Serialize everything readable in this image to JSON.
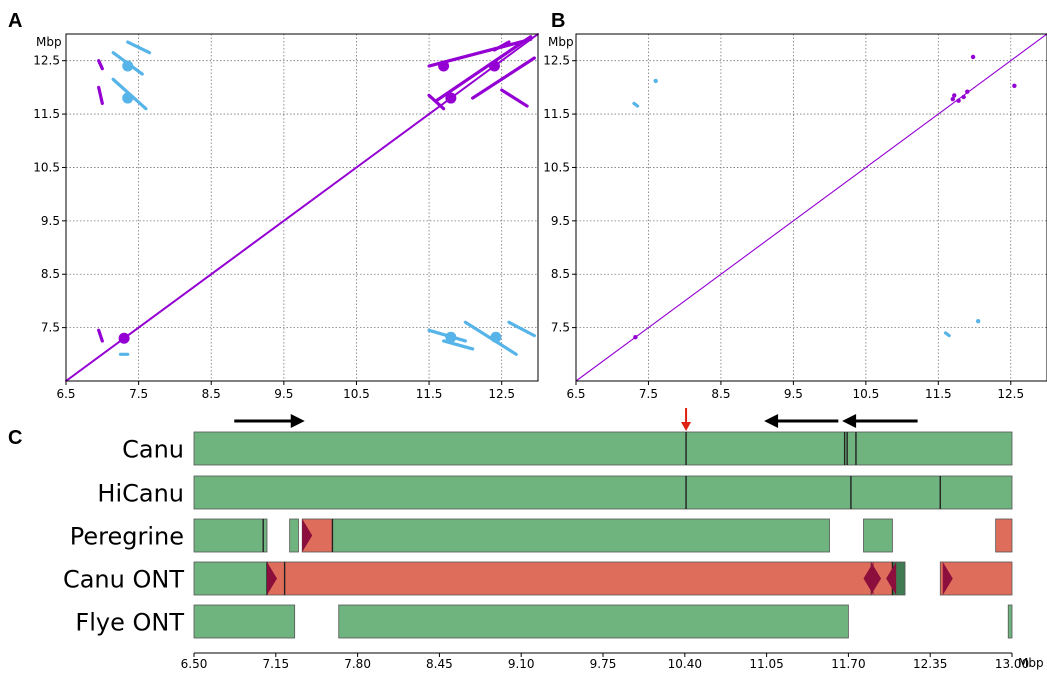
{
  "colors": {
    "purple": "#9400D3",
    "blue": "#56B4E9",
    "green": "#6FB37F",
    "red": "#DE6E5B",
    "dark_red": "#8B0E3C",
    "dark_green": "#3E7A52",
    "arrow_red": "#E02010",
    "grid": "#777777"
  },
  "panels": {
    "A": {
      "letter": "A",
      "unit": "Mbp"
    },
    "B": {
      "letter": "B",
      "unit": "Mbp"
    },
    "C": {
      "letter": "C",
      "unit": "Mbp"
    }
  },
  "chart_data": [
    {
      "panel": "A",
      "type": "scatter",
      "xlim": [
        6.5,
        13.0
      ],
      "ylim": [
        6.5,
        13.0
      ],
      "xticks": [
        "6.5",
        "7.5",
        "8.5",
        "9.5",
        "10.5",
        "11.5",
        "12.5"
      ],
      "yticks": [
        "7.5",
        "8.5",
        "9.5",
        "10.5",
        "11.5",
        "12.5"
      ],
      "ylabel": "Mbp",
      "grid": true,
      "segments": [
        {
          "color": "purple",
          "x": [
            6.5,
            13.0
          ],
          "y": [
            6.5,
            13.0
          ]
        },
        {
          "color": "purple",
          "x": [
            11.5,
            12.9
          ],
          "y": [
            12.4,
            12.9
          ]
        },
        {
          "color": "purple",
          "x": [
            11.6,
            12.9
          ],
          "y": [
            11.75,
            12.95
          ]
        },
        {
          "color": "purple",
          "x": [
            12.1,
            12.95
          ],
          "y": [
            11.8,
            12.55
          ]
        },
        {
          "color": "purple",
          "x": [
            12.5,
            12.85
          ],
          "y": [
            11.95,
            11.65
          ]
        },
        {
          "color": "purple",
          "x": [
            12.4,
            12.6
          ],
          "y": [
            12.7,
            12.85
          ]
        },
        {
          "color": "purple",
          "x": [
            11.5,
            11.7
          ],
          "y": [
            11.85,
            11.6
          ]
        },
        {
          "color": "purple",
          "x": [
            6.95,
            7.0
          ],
          "y": [
            12.5,
            12.35
          ]
        },
        {
          "color": "purple",
          "x": [
            6.95,
            7.0
          ],
          "y": [
            12.0,
            11.7
          ]
        },
        {
          "color": "purple",
          "x": [
            6.95,
            7.0
          ],
          "y": [
            7.45,
            7.25
          ]
        },
        {
          "color": "blue",
          "x": [
            7.15,
            7.55
          ],
          "y": [
            12.65,
            12.25
          ]
        },
        {
          "color": "blue",
          "x": [
            7.35,
            7.65
          ],
          "y": [
            12.85,
            12.65
          ]
        },
        {
          "color": "blue",
          "x": [
            7.15,
            7.6
          ],
          "y": [
            12.15,
            11.6
          ]
        },
        {
          "color": "blue",
          "x": [
            7.25,
            7.35
          ],
          "y": [
            7.0,
            7.0
          ]
        },
        {
          "color": "blue",
          "x": [
            11.5,
            12.0
          ],
          "y": [
            7.45,
            7.25
          ]
        },
        {
          "color": "blue",
          "x": [
            11.7,
            12.1
          ],
          "y": [
            7.25,
            7.1
          ]
        },
        {
          "color": "blue",
          "x": [
            12.0,
            12.7
          ],
          "y": [
            7.6,
            7.0
          ]
        },
        {
          "color": "blue",
          "x": [
            12.6,
            12.95
          ],
          "y": [
            7.6,
            7.35
          ]
        }
      ],
      "blobs": [
        {
          "color": "purple",
          "x": 7.3,
          "y": 7.3
        },
        {
          "color": "purple",
          "x": 11.8,
          "y": 11.8
        },
        {
          "color": "purple",
          "x": 11.7,
          "y": 12.4
        },
        {
          "color": "purple",
          "x": 12.4,
          "y": 12.4
        },
        {
          "color": "blue",
          "x": 7.35,
          "y": 12.4
        },
        {
          "color": "blue",
          "x": 7.35,
          "y": 11.8
        },
        {
          "color": "blue",
          "x": 11.8,
          "y": 7.32
        },
        {
          "color": "blue",
          "x": 12.42,
          "y": 7.32
        }
      ]
    },
    {
      "panel": "B",
      "type": "scatter",
      "xlim": [
        6.5,
        13.0
      ],
      "ylim": [
        6.5,
        13.0
      ],
      "xticks": [
        "6.5",
        "7.5",
        "8.5",
        "9.5",
        "10.5",
        "11.5",
        "12.5"
      ],
      "yticks": [
        "7.5",
        "8.5",
        "9.5",
        "10.5",
        "11.5",
        "12.5"
      ],
      "ylabel": "Mbp",
      "grid": true,
      "segments": [
        {
          "color": "purple",
          "x": [
            6.5,
            13.0
          ],
          "y": [
            6.5,
            13.0
          ]
        },
        {
          "color": "blue",
          "x": [
            7.3,
            7.35
          ],
          "y": [
            11.7,
            11.65
          ]
        },
        {
          "color": "blue",
          "x": [
            11.6,
            11.65
          ],
          "y": [
            7.4,
            7.35
          ]
        }
      ],
      "blobs": [
        {
          "color": "purple",
          "x": 7.32,
          "y": 7.32
        },
        {
          "color": "purple",
          "x": 11.72,
          "y": 11.85
        },
        {
          "color": "purple",
          "x": 11.78,
          "y": 11.75
        },
        {
          "color": "purple",
          "x": 11.85,
          "y": 11.82
        },
        {
          "color": "purple",
          "x": 11.7,
          "y": 11.78
        },
        {
          "color": "purple",
          "x": 11.9,
          "y": 11.92
        },
        {
          "color": "purple",
          "x": 11.98,
          "y": 12.57
        },
        {
          "color": "purple",
          "x": 12.55,
          "y": 12.03
        },
        {
          "color": "blue",
          "x": 7.6,
          "y": 12.12
        },
        {
          "color": "blue",
          "x": 12.05,
          "y": 7.62
        }
      ]
    },
    {
      "panel": "C",
      "type": "bar",
      "orientation": "horizontal",
      "xlim": [
        6.5,
        13.0
      ],
      "xticks": [
        "6.50",
        "7.15",
        "7.80",
        "8.45",
        "9.10",
        "9.75",
        "10.40",
        "11.05",
        "11.70",
        "12.35",
        "13.00"
      ],
      "xlabel": "Mbp",
      "tracks": [
        {
          "name": "Canu",
          "blocks": [
            {
              "start": 6.5,
              "end": 13.0,
              "color": "green"
            }
          ],
          "lines": [
            10.41,
            11.67,
            11.69,
            11.76
          ]
        },
        {
          "name": "HiCanu",
          "blocks": [
            {
              "start": 6.5,
              "end": 13.0,
              "color": "green"
            }
          ],
          "lines": [
            10.41,
            11.72,
            12.43
          ]
        },
        {
          "name": "Peregrine",
          "blocks": [
            {
              "start": 6.5,
              "end": 7.08,
              "color": "green"
            },
            {
              "start": 7.26,
              "end": 7.33,
              "color": "green"
            },
            {
              "start": 7.36,
              "end": 7.6,
              "color": "red"
            },
            {
              "start": 7.6,
              "end": 11.55,
              "color": "green"
            },
            {
              "start": 11.82,
              "end": 12.05,
              "color": "green"
            },
            {
              "start": 12.87,
              "end": 13.0,
              "color": "red"
            }
          ],
          "lines": [
            7.05,
            7.6
          ],
          "markers": [
            {
              "pos": 7.36,
              "dir": "right"
            }
          ]
        },
        {
          "name": "Canu ONT",
          "blocks": [
            {
              "start": 6.5,
              "end": 7.08,
              "color": "green"
            },
            {
              "start": 7.08,
              "end": 7.22,
              "color": "red"
            },
            {
              "start": 7.22,
              "end": 11.88,
              "color": "red"
            },
            {
              "start": 11.88,
              "end": 12.05,
              "color": "red"
            },
            {
              "start": 12.05,
              "end": 12.15,
              "color": "dark_green"
            },
            {
              "start": 12.43,
              "end": 13.0,
              "color": "red"
            }
          ],
          "lines": [
            7.08,
            7.22,
            12.05
          ],
          "markers": [
            {
              "pos": 7.08,
              "dir": "right"
            },
            {
              "pos": 11.82,
              "dir": "left"
            },
            {
              "pos": 11.88,
              "dir": "right"
            },
            {
              "pos": 12.0,
              "dir": "left"
            },
            {
              "pos": 12.45,
              "dir": "right"
            }
          ]
        },
        {
          "name": "Flye ONT",
          "blocks": [
            {
              "start": 6.5,
              "end": 7.3,
              "color": "green"
            },
            {
              "start": 7.65,
              "end": 11.7,
              "color": "green"
            },
            {
              "start": 12.97,
              "end": 13.0,
              "color": "green"
            }
          ],
          "lines": []
        }
      ],
      "annotations": [
        {
          "type": "arrow",
          "from": 6.82,
          "to": 7.38,
          "dir": "right",
          "color": "black"
        },
        {
          "type": "arrow",
          "from": 11.03,
          "to": 11.62,
          "dir": "left",
          "color": "black"
        },
        {
          "type": "arrow",
          "from": 11.65,
          "to": 12.25,
          "dir": "left",
          "color": "black"
        },
        {
          "type": "down-arrow",
          "pos": 10.41,
          "color": "arrow_red"
        }
      ]
    }
  ]
}
